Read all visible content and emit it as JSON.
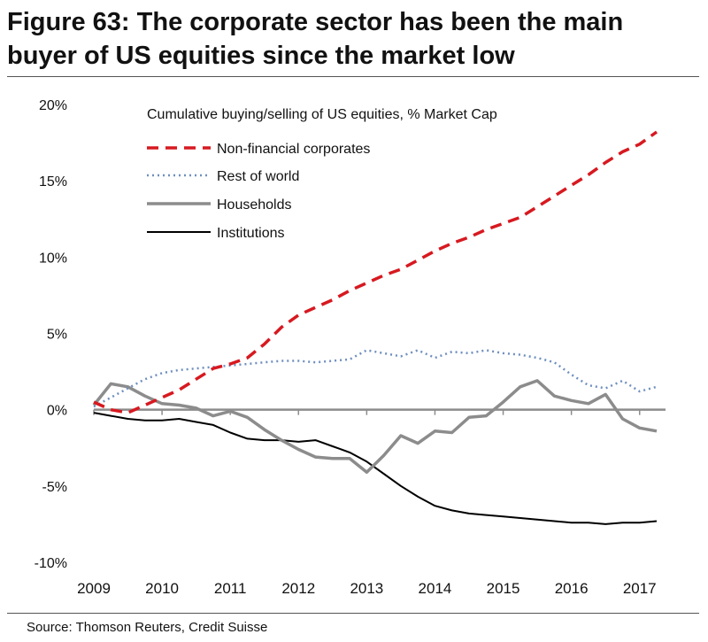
{
  "title": "Figure 63: The corporate sector has been the main buyer of US equities since the market low",
  "source": "Source: Thomson Reuters, Credit Suisse",
  "chart_data": {
    "type": "line",
    "subtitle": "Cumulative buying/selling of US equities, % Market Cap",
    "x_tick_labels": [
      "2009",
      "2010",
      "2011",
      "2012",
      "2013",
      "2014",
      "2015",
      "2016",
      "2017"
    ],
    "y_tick_labels": [
      "20%",
      "15%",
      "10%",
      "5%",
      "0%",
      "-5%",
      "-10%"
    ],
    "y_ticks": [
      20,
      15,
      10,
      5,
      0,
      -5,
      -10
    ],
    "xlim": [
      2009,
      2017.25
    ],
    "ylim": [
      -10,
      20
    ],
    "grid": false,
    "legend_position": "top-left",
    "zero_line": true,
    "series": [
      {
        "name": "Non-financial corporates",
        "style": "dashed",
        "color": "#d71920",
        "x": [
          2009.0,
          2009.25,
          2009.5,
          2009.75,
          2010.0,
          2010.25,
          2010.5,
          2010.75,
          2011.0,
          2011.25,
          2011.5,
          2011.75,
          2012.0,
          2012.25,
          2012.5,
          2012.75,
          2013.0,
          2013.25,
          2013.5,
          2013.75,
          2014.0,
          2014.25,
          2014.5,
          2014.75,
          2015.0,
          2015.25,
          2015.5,
          2015.75,
          2016.0,
          2016.25,
          2016.5,
          2016.75,
          2017.0,
          2017.25
        ],
        "y": [
          0.5,
          0.0,
          -0.2,
          0.3,
          0.8,
          1.3,
          2.0,
          2.7,
          3.0,
          3.4,
          4.3,
          5.4,
          6.2,
          6.7,
          7.2,
          7.8,
          8.3,
          8.8,
          9.2,
          9.8,
          10.4,
          10.9,
          11.3,
          11.8,
          12.2,
          12.6,
          13.3,
          14.0,
          14.7,
          15.4,
          16.2,
          16.9,
          17.4,
          18.2
        ]
      },
      {
        "name": "Rest of world",
        "style": "dotted",
        "color": "#6f8fbf",
        "x": [
          2009.0,
          2009.25,
          2009.5,
          2009.75,
          2010.0,
          2010.25,
          2010.5,
          2010.75,
          2011.0,
          2011.25,
          2011.5,
          2011.75,
          2012.0,
          2012.25,
          2012.5,
          2012.75,
          2013.0,
          2013.25,
          2013.5,
          2013.75,
          2014.0,
          2014.25,
          2014.5,
          2014.75,
          2015.0,
          2015.25,
          2015.5,
          2015.75,
          2016.0,
          2016.25,
          2016.5,
          2016.75,
          2017.0,
          2017.25
        ],
        "y": [
          0.2,
          0.8,
          1.4,
          2.0,
          2.4,
          2.6,
          2.7,
          2.8,
          2.9,
          3.0,
          3.1,
          3.2,
          3.2,
          3.1,
          3.2,
          3.3,
          3.9,
          3.7,
          3.5,
          3.9,
          3.4,
          3.8,
          3.7,
          3.9,
          3.7,
          3.6,
          3.4,
          3.1,
          2.3,
          1.6,
          1.4,
          1.9,
          1.2,
          1.5
        ]
      },
      {
        "name": "Households",
        "style": "solid",
        "color": "#8c8c8c",
        "x": [
          2009.0,
          2009.25,
          2009.5,
          2009.75,
          2010.0,
          2010.25,
          2010.5,
          2010.75,
          2011.0,
          2011.25,
          2011.5,
          2011.75,
          2012.0,
          2012.25,
          2012.5,
          2012.75,
          2013.0,
          2013.25,
          2013.5,
          2013.75,
          2014.0,
          2014.25,
          2014.5,
          2014.75,
          2015.0,
          2015.25,
          2015.5,
          2015.75,
          2016.0,
          2016.25,
          2016.5,
          2016.75,
          2017.0,
          2017.25
        ],
        "y": [
          0.3,
          1.7,
          1.5,
          0.9,
          0.4,
          0.3,
          0.1,
          -0.4,
          -0.1,
          -0.5,
          -1.3,
          -2.0,
          -2.6,
          -3.1,
          -3.2,
          -3.2,
          -4.1,
          -3.0,
          -1.7,
          -2.2,
          -1.4,
          -1.5,
          -0.5,
          -0.4,
          0.5,
          1.5,
          1.9,
          0.9,
          0.6,
          0.4,
          1.0,
          -0.6,
          -1.2,
          -1.4
        ]
      },
      {
        "name": "Institutions",
        "style": "solid",
        "color": "#000000",
        "x": [
          2009.0,
          2009.25,
          2009.5,
          2009.75,
          2010.0,
          2010.25,
          2010.5,
          2010.75,
          2011.0,
          2011.25,
          2011.5,
          2011.75,
          2012.0,
          2012.25,
          2012.5,
          2012.75,
          2013.0,
          2013.25,
          2013.5,
          2013.75,
          2014.0,
          2014.25,
          2014.5,
          2014.75,
          2015.0,
          2015.25,
          2015.5,
          2015.75,
          2016.0,
          2016.25,
          2016.5,
          2016.75,
          2017.0,
          2017.25
        ],
        "y": [
          -0.2,
          -0.4,
          -0.6,
          -0.7,
          -0.7,
          -0.6,
          -0.8,
          -1.0,
          -1.5,
          -1.9,
          -2.0,
          -2.0,
          -2.1,
          -2.0,
          -2.4,
          -2.8,
          -3.4,
          -4.2,
          -5.0,
          -5.7,
          -6.3,
          -6.6,
          -6.8,
          -6.9,
          -7.0,
          -7.1,
          -7.2,
          -7.3,
          -7.4,
          -7.4,
          -7.5,
          -7.4,
          -7.4,
          -7.3
        ]
      }
    ]
  }
}
